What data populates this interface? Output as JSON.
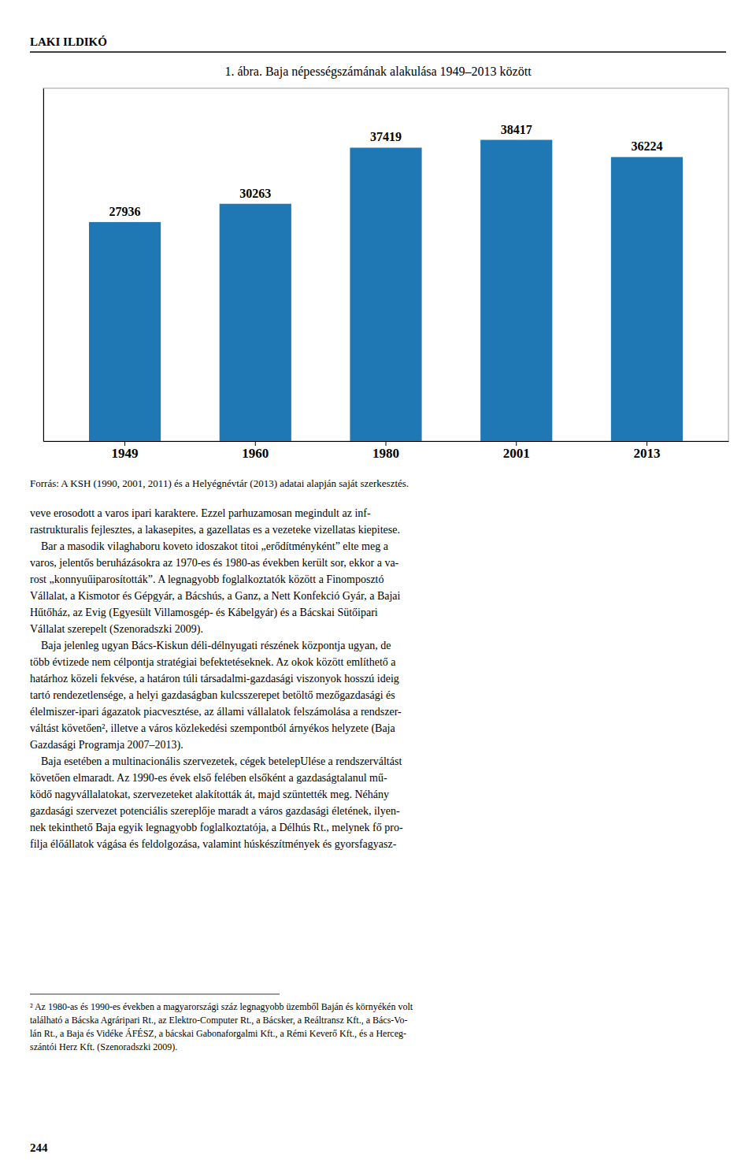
{
  "chart_data": {
    "type": "bar",
    "title": "1. ábra. Baja népességszámának alakulása 1949–2013 között",
    "categories": [
      "1949",
      "1960",
      "1980",
      "2001",
      "2013"
    ],
    "values": [
      27936,
      30263,
      37419,
      38417,
      36224
    ],
    "ylim": [
      0,
      45000
    ],
    "data_labels": true,
    "tick_labels": "x",
    "grid": false
  },
  "page_header": "LAKI ILDIKÓ",
  "source": "Forrás: A KSH (1990, 2001, 2011) és a Helyégnévtár (2013) adatai alapján saját szerkesztés.",
  "body_text": [
    "veve erosodott a varos ipari karaktere. Ezzel parhuzamosan megindult az inf-",
    "rastrukturalis fejlesztes, a lakasepites, a gazellatas es a vezeteke vizellatas kiepitese.",
    "    Bar a masodik vilaghaboru koveto idoszakot titoi „erődítményként” elte meg a",
    "varos, jelentős beruházásokra az 1970-es és 1980-as években került sor, ekkor a va-",
    "rost „konnyuűiparosították”. A legnagyobb foglalkoztatók között a Finomposztó",
    "Vállalat, a Kismotor és Gépgyár, a Bácshús, a Ganz, a Nett Konfekció Gyár, a Bajai",
    "Hűtőház, az Evig (Egyesült Villamosgép- és Kábelgyár) és a Bácskai Sütőipari",
    "Vállalat szerepelt (Szenoradszki 2009).",
    "    Baja jelenleg ugyan Bács-Kiskun déli-délnyugati részének központja ugyan, de",
    "több évtizede nem célpontja stratégiai befektetéseknek. Az okok között említhető a",
    "határhoz közeli fekvése, a határon túli társadalmi-gazdasági viszonyok hosszú ideig",
    "tartó rendezetlensége, a helyi gazdaságban kulcsszerepet betöltő mezőgazdasági és",
    "élelmiszer-ipari ágazatok piacvesztése, az állami vállalatok felszámolása a rendszer-",
    "váltást követően², illetve a város közlekedési szempontból árnyékos helyzete (Baja",
    "Gazdasági Programja 2007–2013).",
    "    Baja esetében a multinacionális szervezetek, cégek betelepUlése a rendszerváltást",
    "követően elmaradt. Az 1990-es évek első felében elsőként a gazdaságtalanul mű-",
    "ködő nagyvállalatokat, szervezeteket alakították át, majd szüntették meg. Néhány",
    "gazdasági szervezet potenciális szereplője maradt a város gazdasági életének, ilyen-",
    "nek tekinthető Baja egyik legnagyobb foglalkoztatója, a Délhús Rt., melynek fő pro-",
    "filja élőállatok vágása és feldolgozása, valamint húskészítmények és gyorsfagyasz-"
  ],
  "footnote": [
    "² Az 1980-as és 1990-es években a magyarországi száz legnagyobb üzemből Baján és környékén volt",
    "található a Bácska Agráripari Rt., az Elektro-Computer Rt., a Bácsker, a Reáltransz Kft., a Bács-Vo-",
    "lán Rt., a Baja és Vidéke ÁFÉSZ, a bácskai Gabonaforgalmi Kft., a Rémi Keverő Kft., és a Herceg-",
    "szántói Herz Kft. (Szenoradszki 2009)."
  ],
  "page_number": "244"
}
